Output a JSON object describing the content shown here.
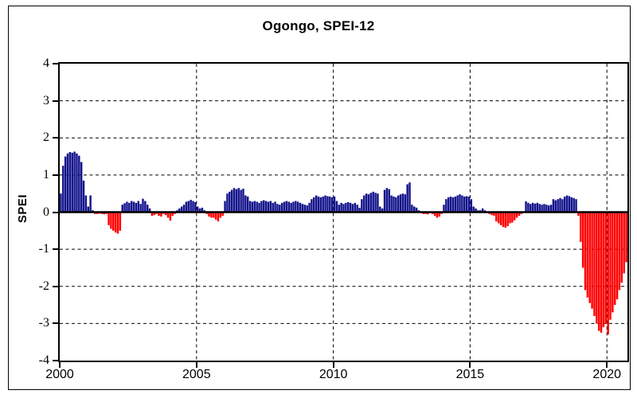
{
  "chart_data": {
    "type": "bar",
    "title": "Ogongo, SPEI-12",
    "xlabel": "",
    "ylabel": "SPEI",
    "ylim": [
      -4,
      4
    ],
    "yticks": [
      -4,
      -3,
      -2,
      -1,
      0,
      1,
      2,
      3,
      4
    ],
    "xticks": [
      2000,
      2005,
      2010,
      2015,
      2020
    ],
    "x_start": "2000-01",
    "x_end": "2020-09",
    "frequency": "monthly",
    "grid": "dashed, horizontal at integers and vertical every 5 years",
    "legend": "none",
    "positive_color": "#14148C",
    "negative_color": "#FF0000",
    "values": [
      0.5,
      1.25,
      1.5,
      1.58,
      1.62,
      1.6,
      1.63,
      1.58,
      1.52,
      1.35,
      0.85,
      0.45,
      0.15,
      0.45,
      0.05,
      -0.05,
      -0.05,
      -0.04,
      -0.05,
      -0.06,
      -0.05,
      -0.35,
      -0.45,
      -0.5,
      -0.55,
      -0.58,
      -0.5,
      0.2,
      0.24,
      0.28,
      0.25,
      0.3,
      0.28,
      0.25,
      0.3,
      0.22,
      0.36,
      0.3,
      0.2,
      0.1,
      -0.1,
      -0.08,
      -0.05,
      -0.1,
      -0.12,
      -0.05,
      -0.08,
      -0.15,
      -0.23,
      -0.1,
      -0.05,
      0.05,
      0.1,
      0.15,
      0.2,
      0.28,
      0.3,
      0.33,
      0.3,
      0.27,
      0.15,
      0.1,
      0.12,
      0.05,
      -0.05,
      -0.12,
      -0.15,
      -0.15,
      -0.2,
      -0.25,
      -0.15,
      -0.1,
      0.3,
      0.5,
      0.55,
      0.6,
      0.65,
      0.62,
      0.65,
      0.6,
      0.63,
      0.45,
      0.42,
      0.3,
      0.28,
      0.3,
      0.28,
      0.25,
      0.3,
      0.32,
      0.3,
      0.28,
      0.3,
      0.25,
      0.28,
      0.22,
      0.2,
      0.25,
      0.28,
      0.3,
      0.28,
      0.25,
      0.28,
      0.3,
      0.28,
      0.25,
      0.22,
      0.2,
      0.18,
      0.25,
      0.35,
      0.4,
      0.45,
      0.42,
      0.4,
      0.42,
      0.45,
      0.43,
      0.42,
      0.4,
      0.42,
      0.3,
      0.2,
      0.25,
      0.22,
      0.25,
      0.27,
      0.25,
      0.22,
      0.25,
      0.2,
      0.12,
      0.35,
      0.45,
      0.5,
      0.48,
      0.52,
      0.55,
      0.52,
      0.5,
      0.15,
      0.1,
      0.6,
      0.65,
      0.62,
      0.45,
      0.42,
      0.4,
      0.45,
      0.48,
      0.5,
      0.48,
      0.75,
      0.8,
      0.2,
      0.15,
      0.12,
      0.05,
      0.02,
      -0.05,
      -0.05,
      -0.06,
      0.02,
      -0.05,
      -0.1,
      -0.15,
      -0.12,
      -0.05,
      0.2,
      0.35,
      0.4,
      0.42,
      0.4,
      0.42,
      0.45,
      0.48,
      0.45,
      0.42,
      0.43,
      0.42,
      0.35,
      0.15,
      0.1,
      0.05,
      0.05,
      0.1,
      0.05,
      0.02,
      -0.05,
      -0.08,
      -0.1,
      -0.25,
      -0.3,
      -0.35,
      -0.4,
      -0.42,
      -0.38,
      -0.3,
      -0.28,
      -0.22,
      -0.15,
      -0.1,
      -0.05,
      0,
      0.29,
      0.25,
      0.22,
      0.25,
      0.23,
      0.25,
      0.22,
      0.2,
      0.22,
      0.2,
      0.18,
      0.2,
      0.35,
      0.32,
      0.35,
      0.38,
      0.35,
      0.42,
      0.45,
      0.43,
      0.4,
      0.38,
      0.35,
      -0.1,
      -0.8,
      -1.5,
      -2.1,
      -2.3,
      -2.45,
      -2.6,
      -2.8,
      -3.0,
      -3.2,
      -3.25,
      -3.1,
      -3.0,
      -3.3,
      -2.9,
      -2.7,
      -2.5,
      -2.35,
      -2.1,
      -1.9,
      -1.65,
      -1.35
    ]
  }
}
